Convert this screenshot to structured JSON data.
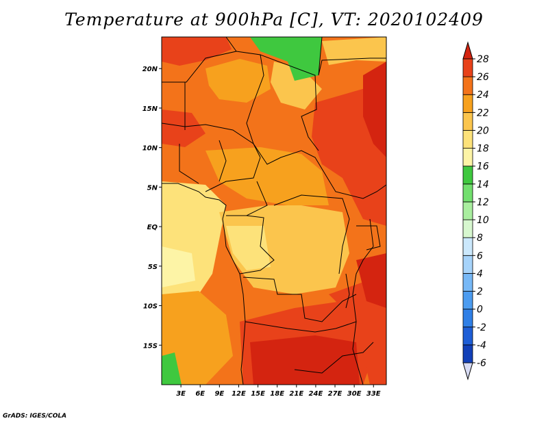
{
  "title": "Temperature at 900hPa [C], VT: 2020102409",
  "credit": "GrADS: IGES/COLA",
  "map": {
    "lon_range": [
      0,
      35
    ],
    "lat_range": [
      -20,
      24
    ],
    "lon_ticks": [
      "3E",
      "6E",
      "9E",
      "12E",
      "15E",
      "18E",
      "21E",
      "24E",
      "27E",
      "30E",
      "33E"
    ],
    "lat_ticks": [
      "20N",
      "15N",
      "10N",
      "5N",
      "EQ",
      "5S",
      "10S",
      "15S"
    ]
  },
  "colorbar": {
    "levels": [
      "-6",
      "-4",
      "-2",
      "0",
      "2",
      "4",
      "6",
      "8",
      "10",
      "12",
      "14",
      "16",
      "18",
      "20",
      "22",
      "24",
      "26",
      "28"
    ],
    "colors": [
      "#0c1d6e",
      "#1240b8",
      "#1e5ed6",
      "#2f7fe6",
      "#4c9cf0",
      "#77b8f6",
      "#a6d3fa",
      "#cbe8fc",
      "#d7f7cf",
      "#a9ee9f",
      "#72df6e",
      "#3fc83f",
      "#fdf4a6",
      "#fde27a",
      "#fbc54d",
      "#f7a11e",
      "#f3731a",
      "#e8421a",
      "#d42410"
    ]
  }
}
